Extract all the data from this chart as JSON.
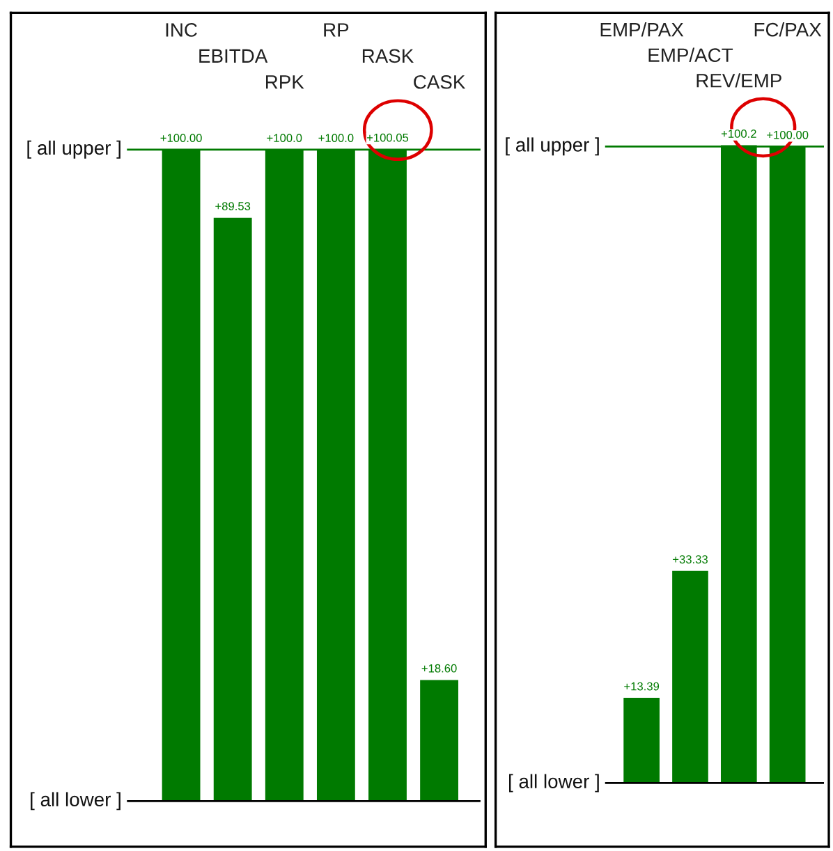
{
  "chart_data": [
    {
      "type": "bar",
      "categories": [
        "INC",
        "EBITDA",
        "RPK",
        "RP",
        "RASK",
        "CASK"
      ],
      "series": [
        {
          "color": "#007a00",
          "values": [
            100.0,
            89.53,
            100.0,
            100.0,
            100.05,
            18.6
          ],
          "value_labels": [
            "+100.00",
            "+89.53",
            "+100.0",
            "+100.0",
            "+100.05",
            "+18.60"
          ]
        }
      ],
      "ylim": [
        -7,
        121
      ],
      "ref_lines": [
        {
          "axis": "y",
          "value": 100,
          "color": "#007a00",
          "label": "[ all upper ]"
        },
        {
          "axis": "y",
          "value": 0,
          "color": "#000000",
          "label": "[ all lower ]"
        }
      ]
    },
    {
      "type": "bar",
      "categories": [
        "EMP/PAX",
        "EMP/ACT",
        "REV/EMP",
        "FC/PAX"
      ],
      "series": [
        {
          "color": "#007a00",
          "values": [
            13.39,
            33.33,
            100.2,
            100.0
          ],
          "value_labels": [
            "+13.39",
            "+33.33",
            "+100.2",
            "+100.00"
          ]
        }
      ],
      "ylim": [
        -10,
        121
      ],
      "ref_lines": [
        {
          "axis": "y",
          "value": 100,
          "color": "#007a00",
          "label": "[ all upper ]"
        },
        {
          "axis": "y",
          "value": 0,
          "color": "#000000",
          "label": "[ all lower ]"
        }
      ]
    }
  ]
}
